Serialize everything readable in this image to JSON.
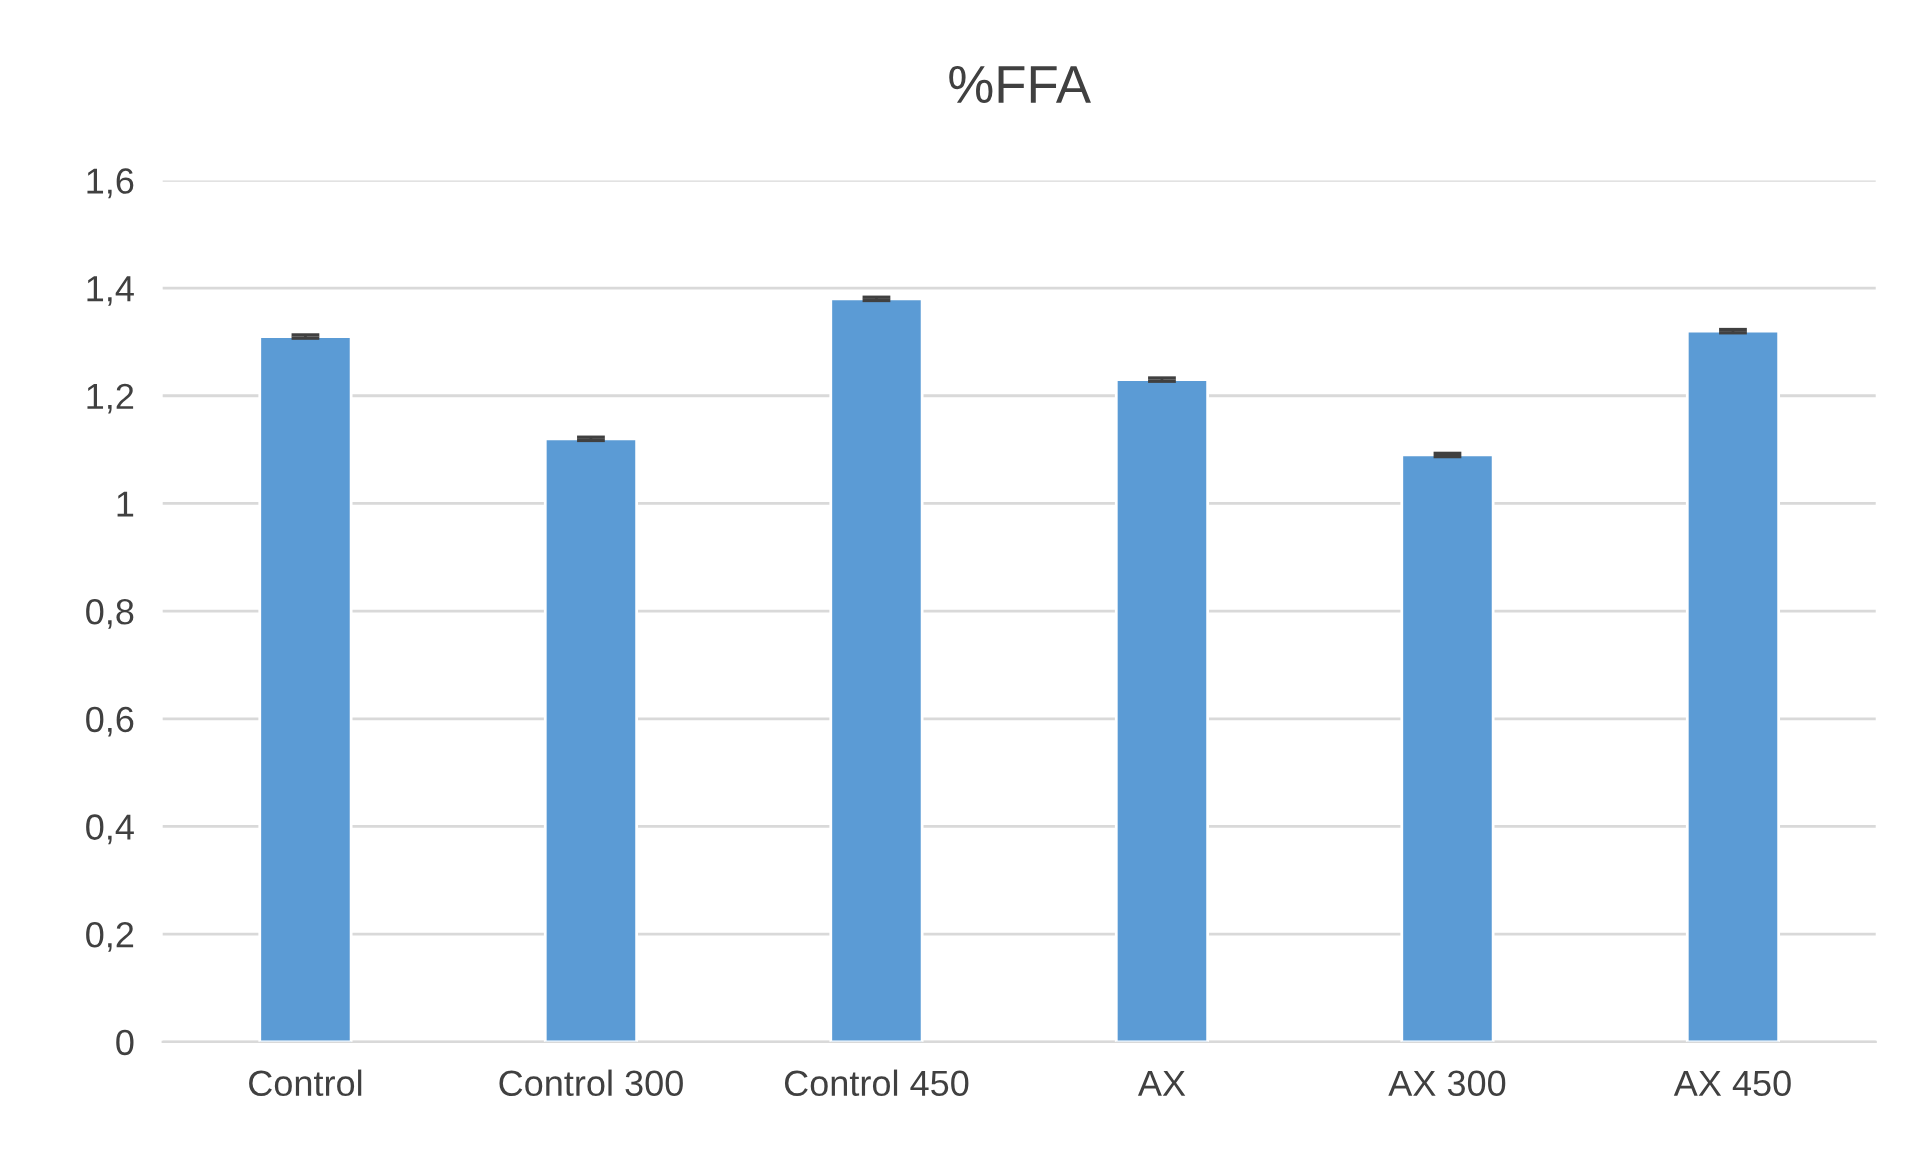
{
  "chart_data": {
    "type": "bar",
    "title": "%FFA",
    "categories": [
      "Control",
      "Control 300",
      "Control 450",
      "AX",
      "AX 300",
      "AX 450"
    ],
    "values": [
      1.31,
      1.12,
      1.38,
      1.23,
      1.09,
      1.32
    ],
    "errors": [
      0.003,
      0.003,
      0.003,
      0.003,
      0.003,
      0.003
    ],
    "color": "#5b9bd5",
    "ylim": [
      0,
      1.6
    ],
    "yticks": [
      0,
      {
        "value": 0.2,
        "label": "0,2"
      },
      {
        "value": 0.4,
        "label": "0,4"
      },
      {
        "value": 0.6,
        "label": "0,6"
      },
      {
        "value": 0.8,
        "label": "0,8"
      },
      1,
      {
        "value": 1.2,
        "label": "1,2"
      },
      {
        "value": 1.4,
        "label": "1,4"
      },
      {
        "value": 1.6,
        "label": "1,6"
      }
    ],
    "grid": "y",
    "legend": false
  }
}
